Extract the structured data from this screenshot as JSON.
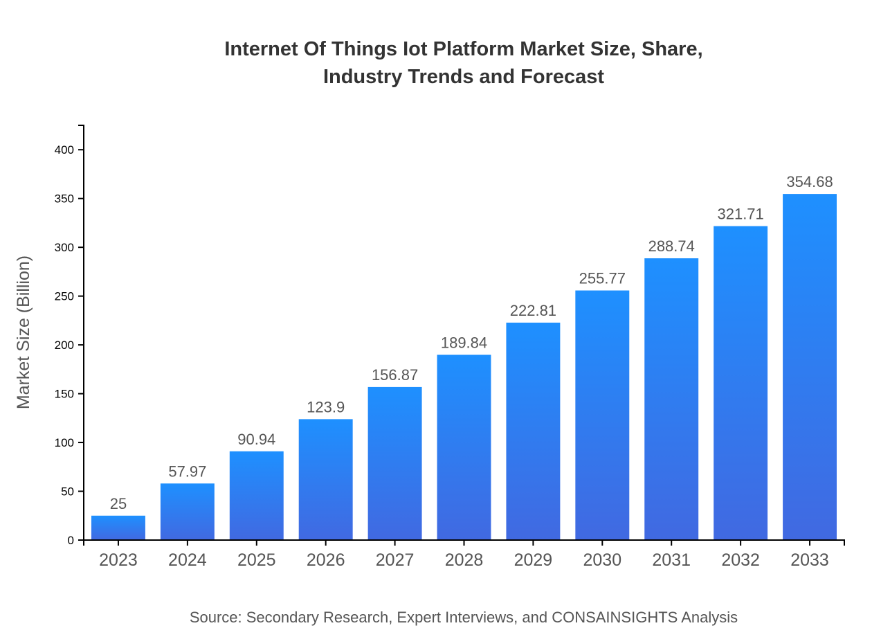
{
  "chart_data": {
    "type": "bar",
    "title_lines": [
      "Internet Of Things Iot Platform Market Size, Share,",
      "Industry Trends and Forecast"
    ],
    "xlabel": "",
    "ylabel": "Market Size (Billion)",
    "categories": [
      "2023",
      "2024",
      "2025",
      "2026",
      "2027",
      "2028",
      "2029",
      "2030",
      "2031",
      "2032",
      "2033"
    ],
    "values": [
      25,
      57.97,
      90.94,
      123.9,
      156.87,
      189.84,
      222.81,
      255.77,
      288.74,
      321.71,
      354.68
    ],
    "data_labels": [
      "25",
      "57.97",
      "90.94",
      "123.9",
      "156.87",
      "189.84",
      "222.81",
      "255.77",
      "288.74",
      "321.71",
      "354.68"
    ],
    "ylim": [
      0,
      425
    ],
    "yticks": [
      0,
      50,
      100,
      150,
      200,
      250,
      300,
      350,
      400
    ],
    "grid": false,
    "legend": "none",
    "colors": {
      "bar_top": "#1e90ff",
      "bar_bottom": "#4169e1"
    },
    "source": "Source: Secondary Research, Expert Interviews, and CONSAINSIGHTS Analysis"
  }
}
